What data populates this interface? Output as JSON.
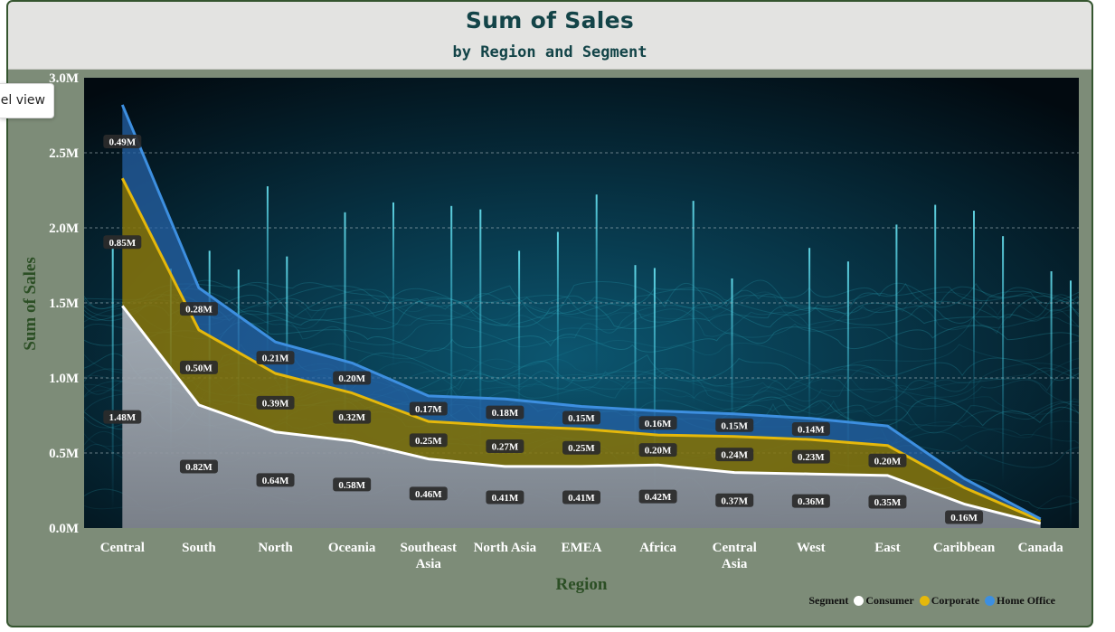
{
  "tooltip": {
    "text": "Model view"
  },
  "chart_data": {
    "type": "area",
    "title": "Sum of Sales",
    "subtitle": "by Region and Segment",
    "xlabel": "Region",
    "ylabel": "Sum of Sales",
    "stacked": true,
    "categories": [
      "Central",
      "South",
      "North",
      "Oceania",
      "Southeast Asia",
      "North Asia",
      "EMEA",
      "Africa",
      "Central Asia",
      "West",
      "East",
      "Caribbean",
      "Canada"
    ],
    "series": [
      {
        "name": "Consumer",
        "color": "#ffffff",
        "values": [
          1.48,
          0.82,
          0.64,
          0.58,
          0.46,
          0.41,
          0.41,
          0.42,
          0.37,
          0.36,
          0.35,
          0.16,
          0.03
        ],
        "labels": [
          "1.48M",
          "0.82M",
          "0.64M",
          "0.58M",
          "0.46M",
          "0.41M",
          "0.41M",
          "0.42M",
          "0.37M",
          "0.36M",
          "0.35M",
          "0.16M",
          ""
        ]
      },
      {
        "name": "Corporate",
        "color": "#e5b80b",
        "values": [
          0.85,
          0.5,
          0.39,
          0.32,
          0.25,
          0.27,
          0.25,
          0.2,
          0.24,
          0.23,
          0.2,
          0.11,
          0.02
        ],
        "labels": [
          "0.85M",
          "0.50M",
          "0.39M",
          "0.32M",
          "0.25M",
          "0.27M",
          "0.25M",
          "0.20M",
          "0.24M",
          "0.23M",
          "0.20M",
          "",
          ""
        ]
      },
      {
        "name": "Home Office",
        "color": "#3d8fe0",
        "values": [
          0.49,
          0.28,
          0.21,
          0.2,
          0.17,
          0.18,
          0.15,
          0.16,
          0.15,
          0.14,
          0.13,
          0.06,
          0.01
        ],
        "labels": [
          "0.49M",
          "0.28M",
          "0.21M",
          "0.20M",
          "0.17M",
          "0.18M",
          "0.15M",
          "0.16M",
          "0.15M",
          "0.14M",
          "",
          "",
          ""
        ]
      }
    ],
    "ylim": [
      0,
      3.0
    ],
    "yticks": [
      {
        "value": 0.0,
        "label": "0.0M"
      },
      {
        "value": 0.5,
        "label": "0.5M"
      },
      {
        "value": 1.0,
        "label": "1.0M"
      },
      {
        "value": 1.5,
        "label": "1.5M"
      },
      {
        "value": 2.0,
        "label": "2.0M"
      },
      {
        "value": 2.5,
        "label": "2.5M"
      },
      {
        "value": 3.0,
        "label": "3.0M"
      }
    ],
    "grid": "horizontal dashed",
    "legend": {
      "title": "Segment",
      "position": "bottom-right"
    }
  }
}
